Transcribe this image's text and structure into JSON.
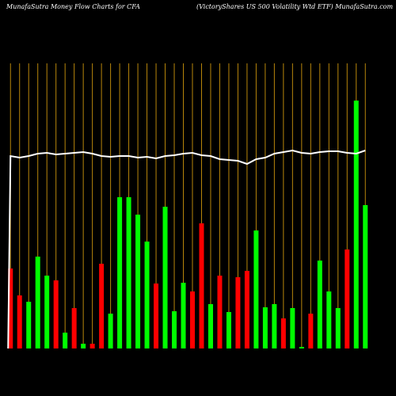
{
  "chart_data": {
    "type": "bar",
    "title": "MunafaSutra  Money Flow  Charts for CFA",
    "subtitle": "(VictoryShares US 500  Volatility Wtd ETF) MunafaSutra.com",
    "categories": [
      null,
      null,
      null,
      null,
      null,
      null,
      null,
      null,
      null,
      null,
      null,
      null,
      null,
      null,
      null,
      null,
      null,
      null,
      null,
      null,
      null,
      null,
      null,
      null,
      null,
      null,
      null,
      null,
      null,
      null,
      null,
      null,
      null,
      null,
      null,
      null,
      null,
      null,
      null,
      null
    ],
    "values": [
      101,
      67,
      59,
      116,
      92,
      86,
      20,
      51,
      6,
      6,
      107,
      44,
      191,
      191,
      169,
      135,
      82,
      179,
      47,
      83,
      72,
      158,
      56,
      92,
      46,
      90,
      98,
      149,
      52,
      56,
      38,
      51,
      2,
      44,
      111,
      72,
      51,
      125,
      313,
      181
    ],
    "colors": [
      "#ff0000",
      "#ff0000",
      "#00ff00",
      "#00ff00",
      "#00ff00",
      "#ff0000",
      "#00ff00",
      "#ff0000",
      "#00ff00",
      "#ff0000",
      "#ff0000",
      "#00ff00",
      "#00ff00",
      "#00ff00",
      "#00ff00",
      "#00ff00",
      "#ff0000",
      "#00ff00",
      "#00ff00",
      "#00ff00",
      "#ff0000",
      "#ff0000",
      "#00ff00",
      "#ff0000",
      "#00ff00",
      "#ff0000",
      "#ff0000",
      "#00ff00",
      "#00ff00",
      "#00ff00",
      "#ff0000",
      "#00ff00",
      "#00ff00",
      "#ff0000",
      "#00ff00",
      "#00ff00",
      "#00ff00",
      "#ff0000",
      "#00ff00",
      "#00ff00"
    ],
    "line": {
      "color": "#ffffff",
      "values": [
        243,
        241,
        243,
        246,
        247,
        245,
        246,
        247,
        248,
        246,
        243,
        242,
        243,
        243,
        241,
        242,
        240,
        243,
        244,
        246,
        247,
        244,
        243,
        239,
        238,
        237,
        233,
        239,
        241,
        246,
        248,
        250,
        247,
        246,
        248,
        249,
        249,
        247,
        246,
        250
      ]
    },
    "ylim": [
      0,
      360
    ],
    "grid_color": "#b8860b"
  }
}
